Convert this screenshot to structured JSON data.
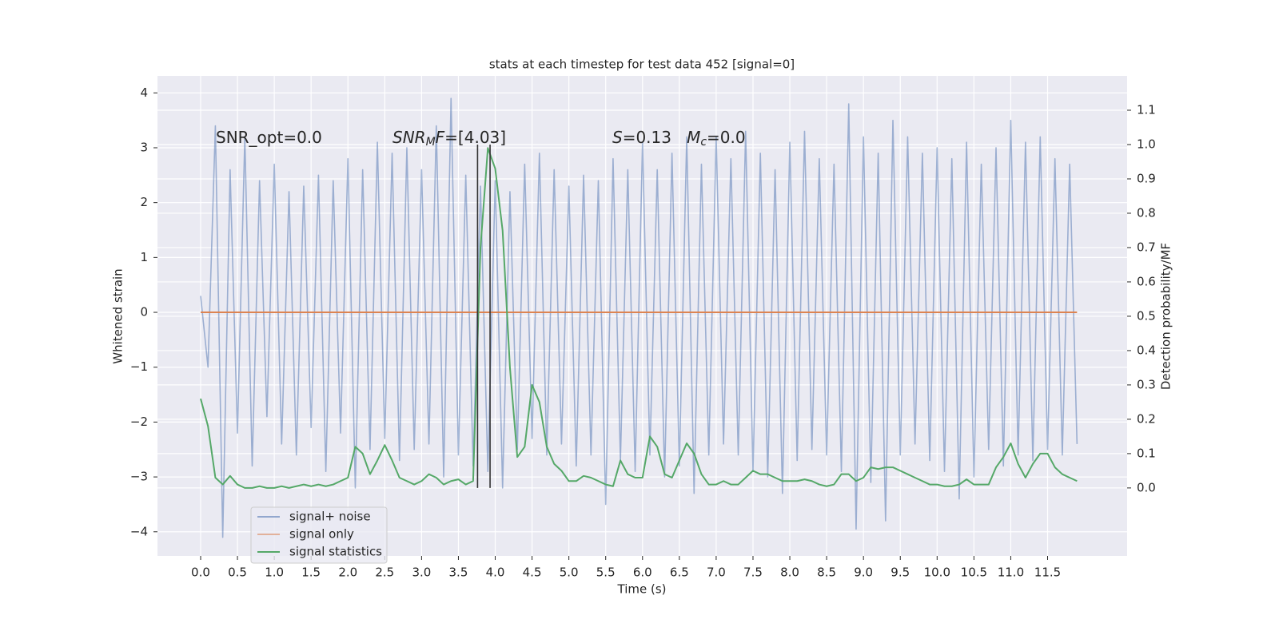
{
  "chart_data": {
    "type": "line",
    "title": "stats at each timestep for test data 452 [signal=0]",
    "xlabel": "Time (s)",
    "ylabel": "Whitened strain",
    "y2label": "Detection probability/MF",
    "x": [
      0.0,
      0.1,
      0.2,
      0.3,
      0.4,
      0.5,
      0.6,
      0.7,
      0.8,
      0.9,
      1.0,
      1.1,
      1.2,
      1.3,
      1.4,
      1.5,
      1.6,
      1.7,
      1.8,
      1.9,
      2.0,
      2.1,
      2.2,
      2.3,
      2.4,
      2.5,
      2.6,
      2.7,
      2.8,
      2.9,
      3.0,
      3.1,
      3.2,
      3.3,
      3.4,
      3.5,
      3.6,
      3.7,
      3.8,
      3.9,
      4.0,
      4.1,
      4.2,
      4.3,
      4.4,
      4.5,
      4.6,
      4.7,
      4.8,
      4.9,
      5.0,
      5.1,
      5.2,
      5.3,
      5.4,
      5.5,
      5.6,
      5.7,
      5.8,
      5.9,
      6.0,
      6.1,
      6.2,
      6.3,
      6.4,
      6.5,
      6.6,
      6.7,
      6.8,
      6.9,
      7.0,
      7.1,
      7.2,
      7.3,
      7.4,
      7.5,
      7.6,
      7.7,
      7.8,
      7.9,
      8.0,
      8.1,
      8.2,
      8.3,
      8.4,
      8.5,
      8.6,
      8.7,
      8.8,
      8.9,
      9.0,
      9.1,
      9.2,
      9.3,
      9.4,
      9.5,
      9.6,
      9.7,
      9.8,
      9.9,
      10.0,
      10.1,
      10.2,
      10.3,
      10.4,
      10.5,
      10.6,
      10.7,
      10.8,
      10.9,
      11.0,
      11.1,
      11.2,
      11.3,
      11.4,
      11.5,
      11.6,
      11.7,
      11.8,
      11.9
    ],
    "series": [
      {
        "name": "signal+ noise",
        "color": "#4c72b0",
        "axis": "y",
        "values": [
          0.3,
          -1.0,
          3.4,
          -4.1,
          2.6,
          -2.2,
          3.2,
          -2.8,
          2.4,
          -1.9,
          2.7,
          -2.4,
          2.2,
          -2.6,
          2.3,
          -2.1,
          2.5,
          -2.9,
          2.4,
          -2.2,
          2.8,
          -3.2,
          2.6,
          -2.5,
          3.1,
          -2.3,
          2.9,
          -2.7,
          3.0,
          -2.5,
          2.6,
          -2.4,
          3.4,
          -3.0,
          3.9,
          -2.6,
          2.5,
          -2.8,
          2.3,
          -2.9,
          2.4,
          -3.2,
          2.2,
          -2.5,
          2.7,
          -2.3,
          2.9,
          -2.6,
          2.6,
          -2.4,
          2.3,
          -2.8,
          2.5,
          -2.6,
          2.4,
          -3.5,
          2.8,
          -2.7,
          2.6,
          -2.9,
          3.1,
          -2.6,
          2.6,
          -3.0,
          2.9,
          -2.8,
          3.2,
          -3.3,
          2.7,
          -2.6,
          3.2,
          -2.4,
          2.8,
          -2.6,
          3.3,
          -2.9,
          2.9,
          -3.0,
          2.6,
          -3.3,
          3.1,
          -2.7,
          3.3,
          -2.5,
          2.8,
          -2.6,
          2.7,
          -2.9,
          3.8,
          -3.95,
          3.2,
          -3.1,
          2.9,
          -3.8,
          3.5,
          -2.6,
          3.2,
          -2.4,
          2.9,
          -2.7,
          3.0,
          -2.9,
          2.8,
          -3.4,
          3.1,
          -3.0,
          2.7,
          -2.5,
          3.0,
          -2.8,
          3.5,
          -2.6,
          3.1,
          -2.7,
          3.2,
          -2.5,
          2.8,
          -2.6,
          2.7,
          -2.4
        ]
      },
      {
        "name": "signal only",
        "color": "#dd8452",
        "axis": "y",
        "x": [
          0.0,
          11.9
        ],
        "values": [
          0,
          0
        ]
      },
      {
        "name": "signal statistics",
        "color": "#55a868",
        "axis": "y2",
        "values": [
          0.26,
          0.18,
          0.03,
          0.01,
          0.035,
          0.01,
          0.0,
          0.0,
          0.005,
          0.0,
          0.0,
          0.005,
          0.0,
          0.005,
          0.01,
          0.005,
          0.01,
          0.005,
          0.01,
          0.02,
          0.03,
          0.12,
          0.1,
          0.04,
          0.08,
          0.125,
          0.08,
          0.03,
          0.02,
          0.01,
          0.02,
          0.04,
          0.03,
          0.01,
          0.02,
          0.025,
          0.01,
          0.02,
          0.7,
          0.99,
          0.93,
          0.75,
          0.35,
          0.09,
          0.12,
          0.3,
          0.25,
          0.12,
          0.07,
          0.05,
          0.02,
          0.02,
          0.035,
          0.03,
          0.02,
          0.01,
          0.005,
          0.08,
          0.04,
          0.03,
          0.03,
          0.15,
          0.12,
          0.04,
          0.03,
          0.08,
          0.13,
          0.1,
          0.04,
          0.01,
          0.01,
          0.02,
          0.01,
          0.01,
          0.03,
          0.05,
          0.04,
          0.04,
          0.03,
          0.02,
          0.02,
          0.02,
          0.025,
          0.02,
          0.01,
          0.005,
          0.01,
          0.04,
          0.04,
          0.02,
          0.03,
          0.06,
          0.055,
          0.06,
          0.06,
          0.05,
          0.04,
          0.03,
          0.02,
          0.01,
          0.01,
          0.005,
          0.005,
          0.01,
          0.025,
          0.01,
          0.01,
          0.01,
          0.06,
          0.09,
          0.13,
          0.07,
          0.03,
          0.07,
          0.1,
          0.1,
          0.06,
          0.04,
          0.03,
          0.02
        ]
      }
    ],
    "vlines": [
      3.76,
      3.93
    ],
    "vline_span": [
      0,
      1
    ],
    "vline_color": "#333333",
    "annotations": [
      {
        "parts": [
          "SNR_opt=0.0"
        ]
      },
      {
        "parts": [
          "SNR",
          "M",
          "F",
          "=[4.03]"
        ]
      },
      {
        "parts": [
          "S",
          "=0.13   ",
          "M",
          "c",
          "=0.0"
        ]
      }
    ],
    "xlim": [
      -0.586,
      12.58
    ],
    "ylim": [
      -4.44,
      4.31
    ],
    "y2lim": [
      -0.198,
      1.2
    ],
    "xticks": [
      {
        "value": 0,
        "label": "0.0"
      },
      0.5,
      {
        "value": 1,
        "label": "1.0"
      },
      1.5,
      {
        "value": 2,
        "label": "2.0"
      },
      2.5,
      {
        "value": 3,
        "label": "3.0"
      },
      3.5,
      {
        "value": 4,
        "label": "4.0"
      },
      4.5,
      {
        "value": 5,
        "label": "5.0"
      },
      5.5,
      {
        "value": 6,
        "label": "6.0"
      },
      6.5,
      {
        "value": 7,
        "label": "7.0"
      },
      7.5,
      {
        "value": 8,
        "label": "8.0"
      },
      8.5,
      {
        "value": 9,
        "label": "9.0"
      },
      9.5,
      {
        "value": 10,
        "label": "10.0"
      },
      10.5,
      {
        "value": 11,
        "label": "11.0"
      },
      11.5
    ],
    "yticks": [
      {
        "value": -4,
        "label": "−4"
      },
      {
        "value": -3,
        "label": "−3"
      },
      {
        "value": -2,
        "label": "−2"
      },
      {
        "value": -1,
        "label": "−1"
      },
      0,
      1,
      2,
      3,
      4
    ],
    "y2ticks": [
      {
        "value": 0,
        "label": "0.0"
      },
      0.1,
      0.2,
      0.3,
      0.4,
      0.5,
      0.6,
      0.7,
      0.8,
      0.9,
      {
        "value": 1,
        "label": "1.0"
      },
      1.1
    ],
    "grid": true,
    "legend": "lower left"
  }
}
